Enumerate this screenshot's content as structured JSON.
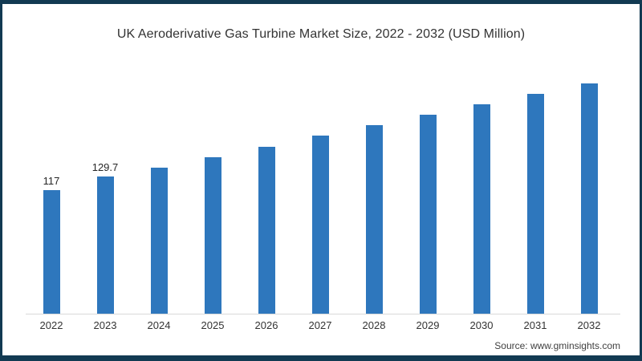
{
  "title": "UK Aeroderivative Gas Turbine Market Size, 2022 - 2032 (USD Million)",
  "source": "Source: www.gminsights.com",
  "colors": {
    "bar": "#2e77bd",
    "frame": "#123a52",
    "axis_line": "#d9d9d9",
    "title_text": "#333333",
    "label_text": "#262626"
  },
  "chart_data": {
    "type": "bar",
    "title": "UK Aeroderivative Gas Turbine Market Size, 2022 - 2032 (USD Million)",
    "xlabel": "",
    "ylabel": "USD Million",
    "categories": [
      "2022",
      "2023",
      "2024",
      "2025",
      "2026",
      "2027",
      "2028",
      "2029",
      "2030",
      "2031",
      "2032"
    ],
    "series": [
      {
        "name": "Market Size (USD Million)",
        "values": [
          117,
          129.7,
          138,
          148,
          158,
          168,
          178,
          188,
          198,
          208,
          218
        ]
      }
    ],
    "data_labels": [
      "117",
      "129.7",
      "",
      "",
      "",
      "",
      "",
      "",
      "",
      "",
      ""
    ],
    "ylim": [
      0,
      230
    ],
    "grid": false,
    "legend_position": "none",
    "source": "Source: www.gminsights.com"
  }
}
